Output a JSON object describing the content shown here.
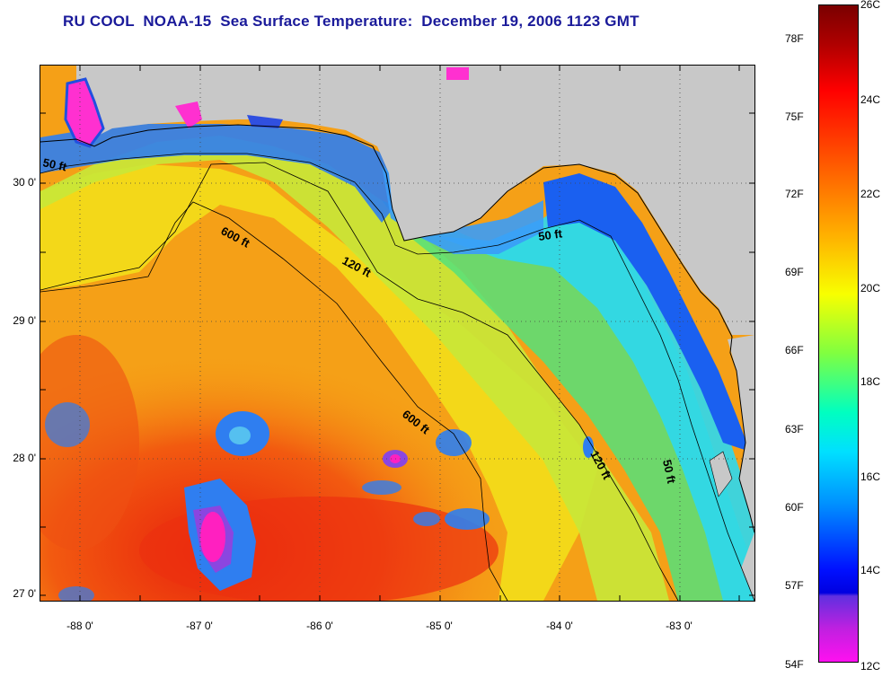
{
  "title": "RU COOL  NOAA-15  Sea Surface Temperature:  December 19, 2006 1123 GMT",
  "map": {
    "lat_labels": [
      "30 0'",
      "29 0'",
      "28 0'",
      "27 0'"
    ],
    "lon_labels": [
      "-88 0'",
      "-87 0'",
      "-86 0'",
      "-85 0'",
      "-84 0'",
      "-83 0'"
    ],
    "contour_labels": [
      "50 ft",
      "600 ft",
      "120 ft",
      "50 ft",
      "600 ft",
      "120 ft",
      "50 ft"
    ],
    "land_color": "#c8c8c8"
  },
  "colorbar": {
    "celsius_labels": [
      "26C",
      "24C",
      "22C",
      "20C",
      "18C",
      "16C",
      "14C",
      "12C"
    ],
    "fahrenheit_labels": [
      "78F",
      "75F",
      "72F",
      "69F",
      "66F",
      "63F",
      "60F",
      "57F",
      "54F"
    ]
  }
}
